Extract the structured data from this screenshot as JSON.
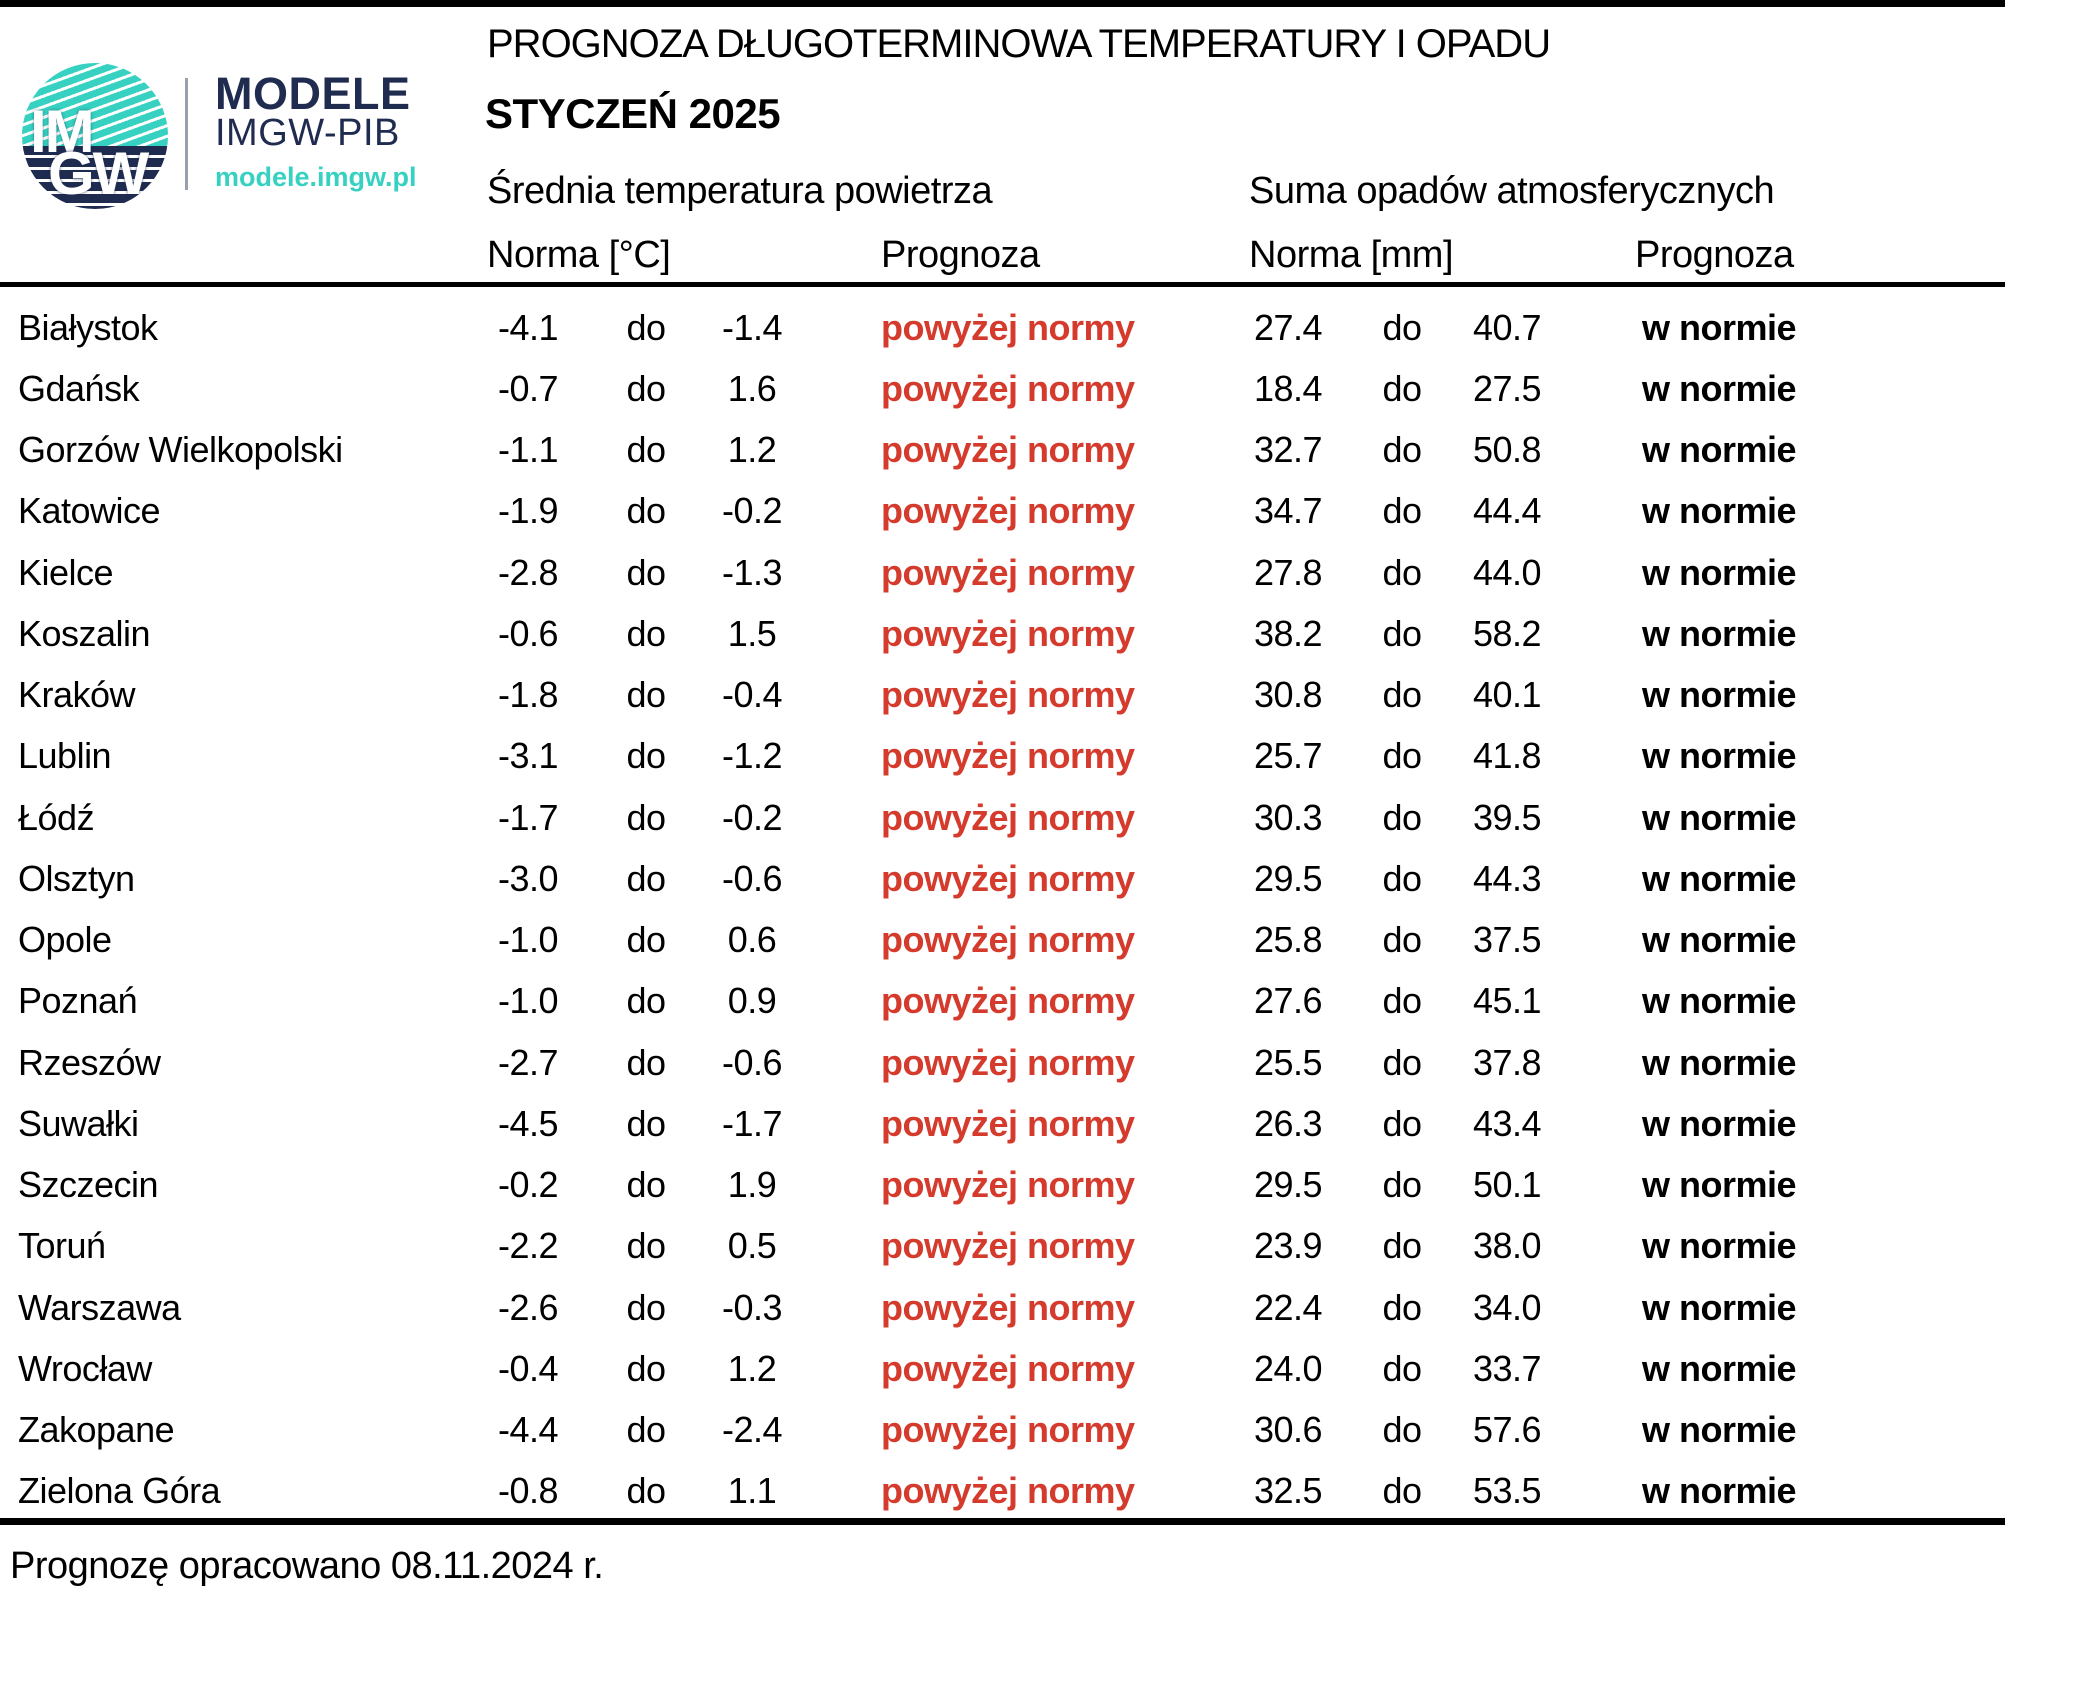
{
  "logo": {
    "im": "IM",
    "gw": "GW",
    "brand_line1": "MODELE",
    "brand_line2": "IMGW-PIB",
    "brand_url": "modele.imgw.pl"
  },
  "colors": {
    "teal": "#36d1c1",
    "navy": "#1f2c50",
    "above_norm_red": "#d53b2d"
  },
  "header": {
    "title": "PROGNOZA DŁUGOTERMINOWA TEMPERATURY I OPADU",
    "subtitle": "STYCZEŃ 2025",
    "temp_group": "Średnia temperatura powietrza",
    "precip_group": "Suma opadów atmosferycznych",
    "temp_norm_label": "Norma [°C]",
    "temp_forecast_label": "Prognoza",
    "precip_norm_label": "Norma [mm]",
    "precip_forecast_label": "Prognoza"
  },
  "table": {
    "rows": [
      {
        "city": "Białystok",
        "t_low": "-4.1",
        "t_sep": "do",
        "t_high": "-1.4",
        "t_forecast": "powyżej normy",
        "p_low": "27.4",
        "p_sep": "do",
        "p_high": "40.7",
        "p_forecast": "w normie"
      },
      {
        "city": "Gdańsk",
        "t_low": "-0.7",
        "t_sep": "do",
        "t_high": "1.6",
        "t_forecast": "powyżej normy",
        "p_low": "18.4",
        "p_sep": "do",
        "p_high": "27.5",
        "p_forecast": "w normie"
      },
      {
        "city": "Gorzów Wielkopolski",
        "t_low": "-1.1",
        "t_sep": "do",
        "t_high": "1.2",
        "t_forecast": "powyżej normy",
        "p_low": "32.7",
        "p_sep": "do",
        "p_high": "50.8",
        "p_forecast": "w normie"
      },
      {
        "city": "Katowice",
        "t_low": "-1.9",
        "t_sep": "do",
        "t_high": "-0.2",
        "t_forecast": "powyżej normy",
        "p_low": "34.7",
        "p_sep": "do",
        "p_high": "44.4",
        "p_forecast": "w normie"
      },
      {
        "city": "Kielce",
        "t_low": "-2.8",
        "t_sep": "do",
        "t_high": "-1.3",
        "t_forecast": "powyżej normy",
        "p_low": "27.8",
        "p_sep": "do",
        "p_high": "44.0",
        "p_forecast": "w normie"
      },
      {
        "city": "Koszalin",
        "t_low": "-0.6",
        "t_sep": "do",
        "t_high": "1.5",
        "t_forecast": "powyżej normy",
        "p_low": "38.2",
        "p_sep": "do",
        "p_high": "58.2",
        "p_forecast": "w normie"
      },
      {
        "city": "Kraków",
        "t_low": "-1.8",
        "t_sep": "do",
        "t_high": "-0.4",
        "t_forecast": "powyżej normy",
        "p_low": "30.8",
        "p_sep": "do",
        "p_high": "40.1",
        "p_forecast": "w normie"
      },
      {
        "city": "Lublin",
        "t_low": "-3.1",
        "t_sep": "do",
        "t_high": "-1.2",
        "t_forecast": "powyżej normy",
        "p_low": "25.7",
        "p_sep": "do",
        "p_high": "41.8",
        "p_forecast": "w normie"
      },
      {
        "city": "Łódź",
        "t_low": "-1.7",
        "t_sep": "do",
        "t_high": "-0.2",
        "t_forecast": "powyżej normy",
        "p_low": "30.3",
        "p_sep": "do",
        "p_high": "39.5",
        "p_forecast": "w normie"
      },
      {
        "city": "Olsztyn",
        "t_low": "-3.0",
        "t_sep": "do",
        "t_high": "-0.6",
        "t_forecast": "powyżej normy",
        "p_low": "29.5",
        "p_sep": "do",
        "p_high": "44.3",
        "p_forecast": "w normie"
      },
      {
        "city": "Opole",
        "t_low": "-1.0",
        "t_sep": "do",
        "t_high": "0.6",
        "t_forecast": "powyżej normy",
        "p_low": "25.8",
        "p_sep": "do",
        "p_high": "37.5",
        "p_forecast": "w normie"
      },
      {
        "city": "Poznań",
        "t_low": "-1.0",
        "t_sep": "do",
        "t_high": "0.9",
        "t_forecast": "powyżej normy",
        "p_low": "27.6",
        "p_sep": "do",
        "p_high": "45.1",
        "p_forecast": "w normie"
      },
      {
        "city": "Rzeszów",
        "t_low": "-2.7",
        "t_sep": "do",
        "t_high": "-0.6",
        "t_forecast": "powyżej normy",
        "p_low": "25.5",
        "p_sep": "do",
        "p_high": "37.8",
        "p_forecast": "w normie"
      },
      {
        "city": "Suwałki",
        "t_low": "-4.5",
        "t_sep": "do",
        "t_high": "-1.7",
        "t_forecast": "powyżej normy",
        "p_low": "26.3",
        "p_sep": "do",
        "p_high": "43.4",
        "p_forecast": "w normie"
      },
      {
        "city": "Szczecin",
        "t_low": "-0.2",
        "t_sep": "do",
        "t_high": "1.9",
        "t_forecast": "powyżej normy",
        "p_low": "29.5",
        "p_sep": "do",
        "p_high": "50.1",
        "p_forecast": "w normie"
      },
      {
        "city": "Toruń",
        "t_low": "-2.2",
        "t_sep": "do",
        "t_high": "0.5",
        "t_forecast": "powyżej normy",
        "p_low": "23.9",
        "p_sep": "do",
        "p_high": "38.0",
        "p_forecast": "w normie"
      },
      {
        "city": "Warszawa",
        "t_low": "-2.6",
        "t_sep": "do",
        "t_high": "-0.3",
        "t_forecast": "powyżej normy",
        "p_low": "22.4",
        "p_sep": "do",
        "p_high": "34.0",
        "p_forecast": "w normie"
      },
      {
        "city": "Wrocław",
        "t_low": "-0.4",
        "t_sep": "do",
        "t_high": "1.2",
        "t_forecast": "powyżej normy",
        "p_low": "24.0",
        "p_sep": "do",
        "p_high": "33.7",
        "p_forecast": "w normie"
      },
      {
        "city": "Zakopane",
        "t_low": "-4.4",
        "t_sep": "do",
        "t_high": "-2.4",
        "t_forecast": "powyżej normy",
        "p_low": "30.6",
        "p_sep": "do",
        "p_high": "57.6",
        "p_forecast": "w normie"
      },
      {
        "city": "Zielona Góra",
        "t_low": "-0.8",
        "t_sep": "do",
        "t_high": "1.1",
        "t_forecast": "powyżej normy",
        "p_low": "32.5",
        "p_sep": "do",
        "p_high": "53.5",
        "p_forecast": "w normie"
      }
    ]
  },
  "footer": {
    "note": "Prognozę opracowano 08.11.2024 r."
  }
}
